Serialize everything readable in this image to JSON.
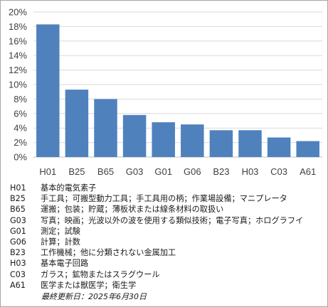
{
  "chart_data": {
    "type": "bar",
    "categories": [
      "H01",
      "B25",
      "B65",
      "G03",
      "G01",
      "G06",
      "B23",
      "H03",
      "C03",
      "A61"
    ],
    "values": [
      18.3,
      9.3,
      8.0,
      5.8,
      4.8,
      4.5,
      3.7,
      3.7,
      2.7,
      2.2
    ],
    "ylim": [
      0,
      20
    ],
    "ytick_step": 2,
    "ytick_labels": [
      "0%",
      "2%",
      "4%",
      "6%",
      "8%",
      "10%",
      "12%",
      "14%",
      "16%",
      "18%",
      "20%"
    ],
    "bar_color": "#4f81bd",
    "grid": true,
    "grid_color": "#d9d9d9",
    "title": "",
    "xlabel": "",
    "ylabel": ""
  },
  "legend": [
    {
      "code": "H01",
      "desc": "基本的電気素子"
    },
    {
      "code": "B25",
      "desc": "手工具；可搬型動力工具；手工具用の柄；作業場設備；マニプレータ"
    },
    {
      "code": "B65",
      "desc": "運搬；包装；貯蔵；薄板状または線条材料の取扱い"
    },
    {
      "code": "G03",
      "desc": "写真；映画；光波以外の波を使用する類似技術；電子写真；ホログラフイ"
    },
    {
      "code": "G01",
      "desc": "測定；試験"
    },
    {
      "code": "G06",
      "desc": "計算；計数"
    },
    {
      "code": "B23",
      "desc": "工作機械；他に分類されない金属加工"
    },
    {
      "code": "H03",
      "desc": "基本電子回路"
    },
    {
      "code": "C03",
      "desc": "ガラス；鉱物またはスラグウール"
    },
    {
      "code": "A61",
      "desc": "医学または獣医学；衛生学"
    }
  ],
  "footnote": "最終更新日：2025年6月30日"
}
